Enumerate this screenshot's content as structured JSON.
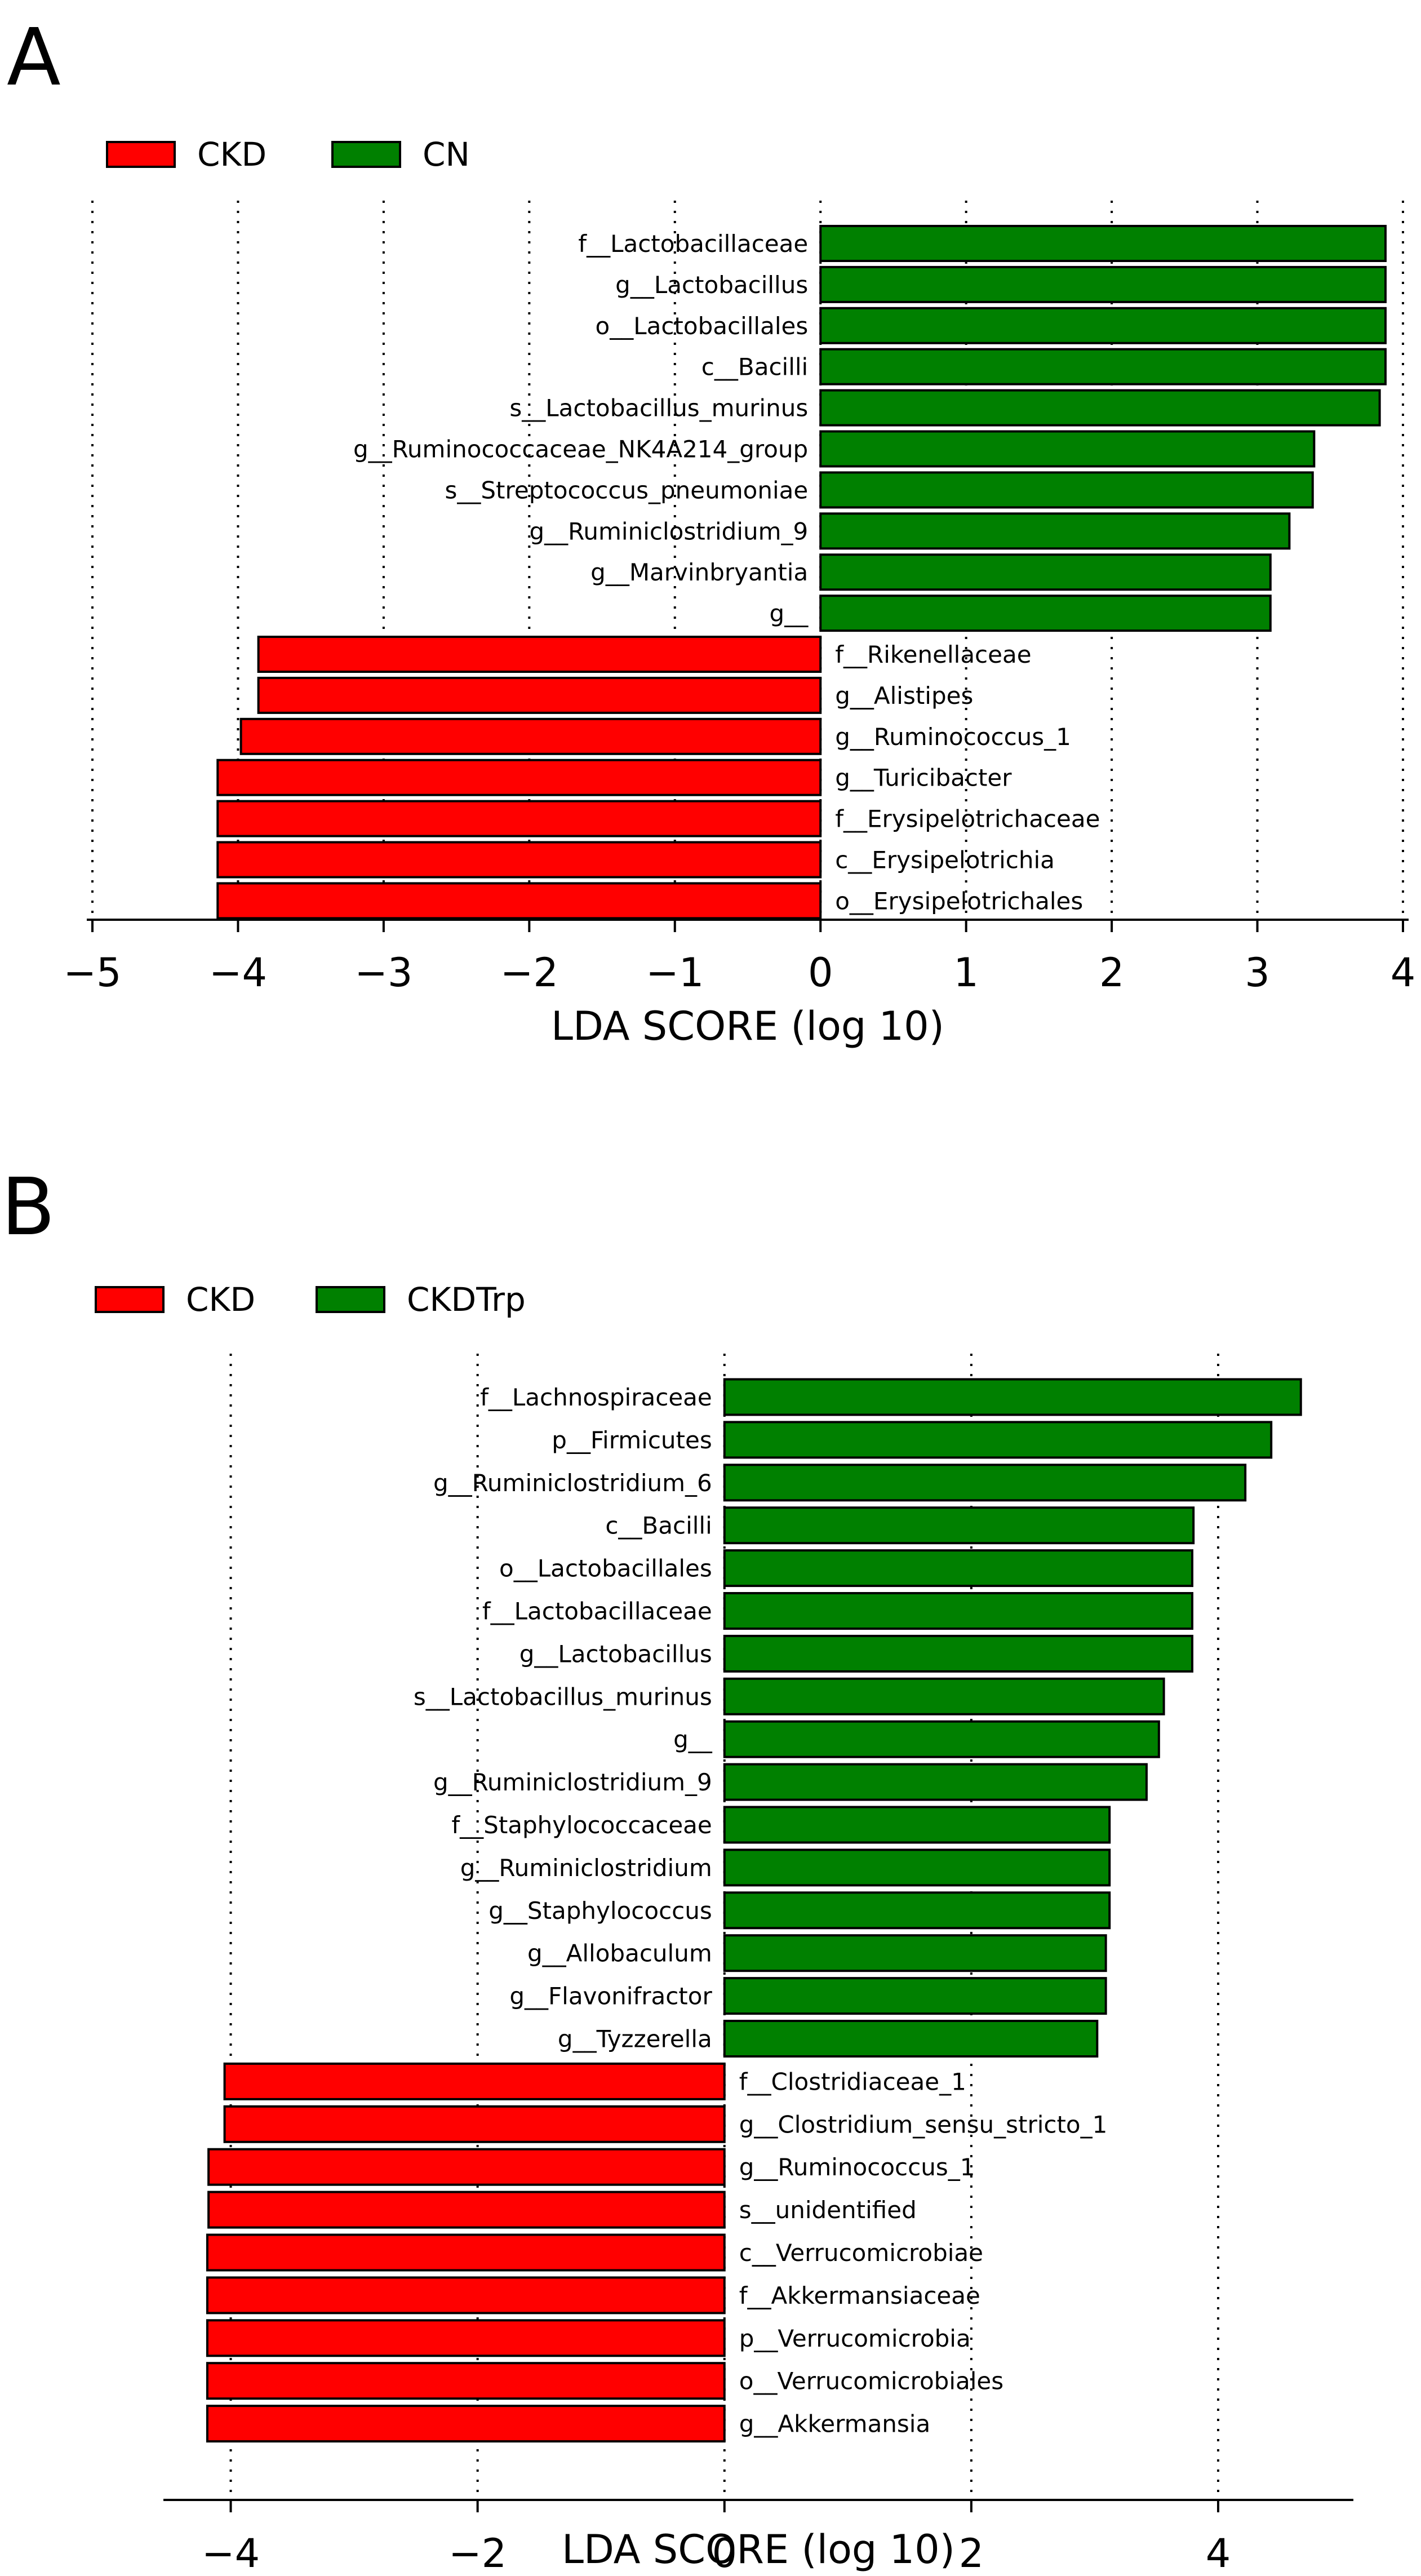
{
  "chart_data": [
    {
      "type": "bar",
      "orientation": "horizontal",
      "panel": "A",
      "legend": [
        {
          "name": "CKD",
          "color": "#ff0000"
        },
        {
          "name": "CN",
          "color": "#008000"
        }
      ],
      "categories": [
        "f__Lactobacillaceae",
        "g__Lactobacillus",
        "o__Lactobacillales",
        "c__Bacilli",
        "s__Lactobacillus_murinus",
        "g__Ruminococcaceae_NK4A214_group",
        "s__Streptococcus_pneumoniae",
        "g__Ruminiclostridium_9",
        "g__Marvinbryantia",
        "g__",
        "f__Rikenellaceae",
        "g__Alistipes",
        "g__Ruminococcus_1",
        "g__Turicibacter",
        "f__Erysipelotrichaceae",
        "c__Erysipelotrichia",
        "o__Erysipelotrichales"
      ],
      "values": [
        3.88,
        3.88,
        3.88,
        3.88,
        3.84,
        3.39,
        3.38,
        3.22,
        3.09,
        3.09,
        -3.86,
        -3.86,
        -3.98,
        -4.14,
        -4.14,
        -4.14,
        -4.14
      ],
      "xlim": [
        -5,
        4
      ],
      "xticks": [
        -5,
        -4,
        -3,
        -2,
        -1,
        0,
        1,
        2,
        3,
        4
      ],
      "xtick_labels": [
        "−5",
        "−4",
        "−3",
        "−2",
        "−1",
        "0",
        "1",
        "2",
        "3",
        "4"
      ],
      "gridlines_at": [
        -5,
        -4,
        -3,
        -2,
        -1,
        0,
        1,
        2,
        3,
        4
      ],
      "xlabel": "LDA SCORE (log 10)",
      "legend_position": "top-left"
    },
    {
      "type": "bar",
      "orientation": "horizontal",
      "panel": "B",
      "legend": [
        {
          "name": "CKD",
          "color": "#ff0000"
        },
        {
          "name": "CKDTrp",
          "color": "#008000"
        }
      ],
      "categories": [
        "f__Lachnospiraceae",
        "p__Firmicutes",
        "g__Ruminiclostridium_6",
        "c__Bacilli",
        "o__Lactobacillales",
        "f__Lactobacillaceae",
        "g__Lactobacillus",
        "s__Lactobacillus_murinus",
        "g__",
        "g__Ruminiclostridium_9",
        "f__Staphylococcaceae",
        "g__Ruminiclostridium",
        "g__Staphylococcus",
        "g__Allobaculum",
        "g__Flavonifractor",
        "g__Tyzzerella",
        "f__Clostridiaceae_1",
        "g__Clostridium_sensu_stricto_1",
        "g__Ruminococcus_1",
        "s__unidentified",
        "c__Verrucomicrobiae",
        "f__Akkermansiaceae",
        "p__Verrucomicrobia",
        "o__Verrucomicrobiales",
        "g__Akkermansia"
      ],
      "values": [
        4.67,
        4.43,
        4.22,
        3.8,
        3.79,
        3.79,
        3.79,
        3.56,
        3.52,
        3.42,
        3.12,
        3.12,
        3.12,
        3.09,
        3.09,
        3.02,
        -4.05,
        -4.05,
        -4.18,
        -4.18,
        -4.19,
        -4.19,
        -4.19,
        -4.19,
        -4.19
      ],
      "xlim": [
        -4.5,
        5.05
      ],
      "xticks": [
        -4,
        -2,
        0,
        2,
        4
      ],
      "xtick_labels": [
        "−4",
        "−2",
        "0",
        "2",
        "4"
      ],
      "gridlines_at": [
        -4,
        -2,
        0,
        2,
        4
      ],
      "xlabel": "LDA SCORE (log 10)",
      "legend_position": "top-left"
    }
  ]
}
